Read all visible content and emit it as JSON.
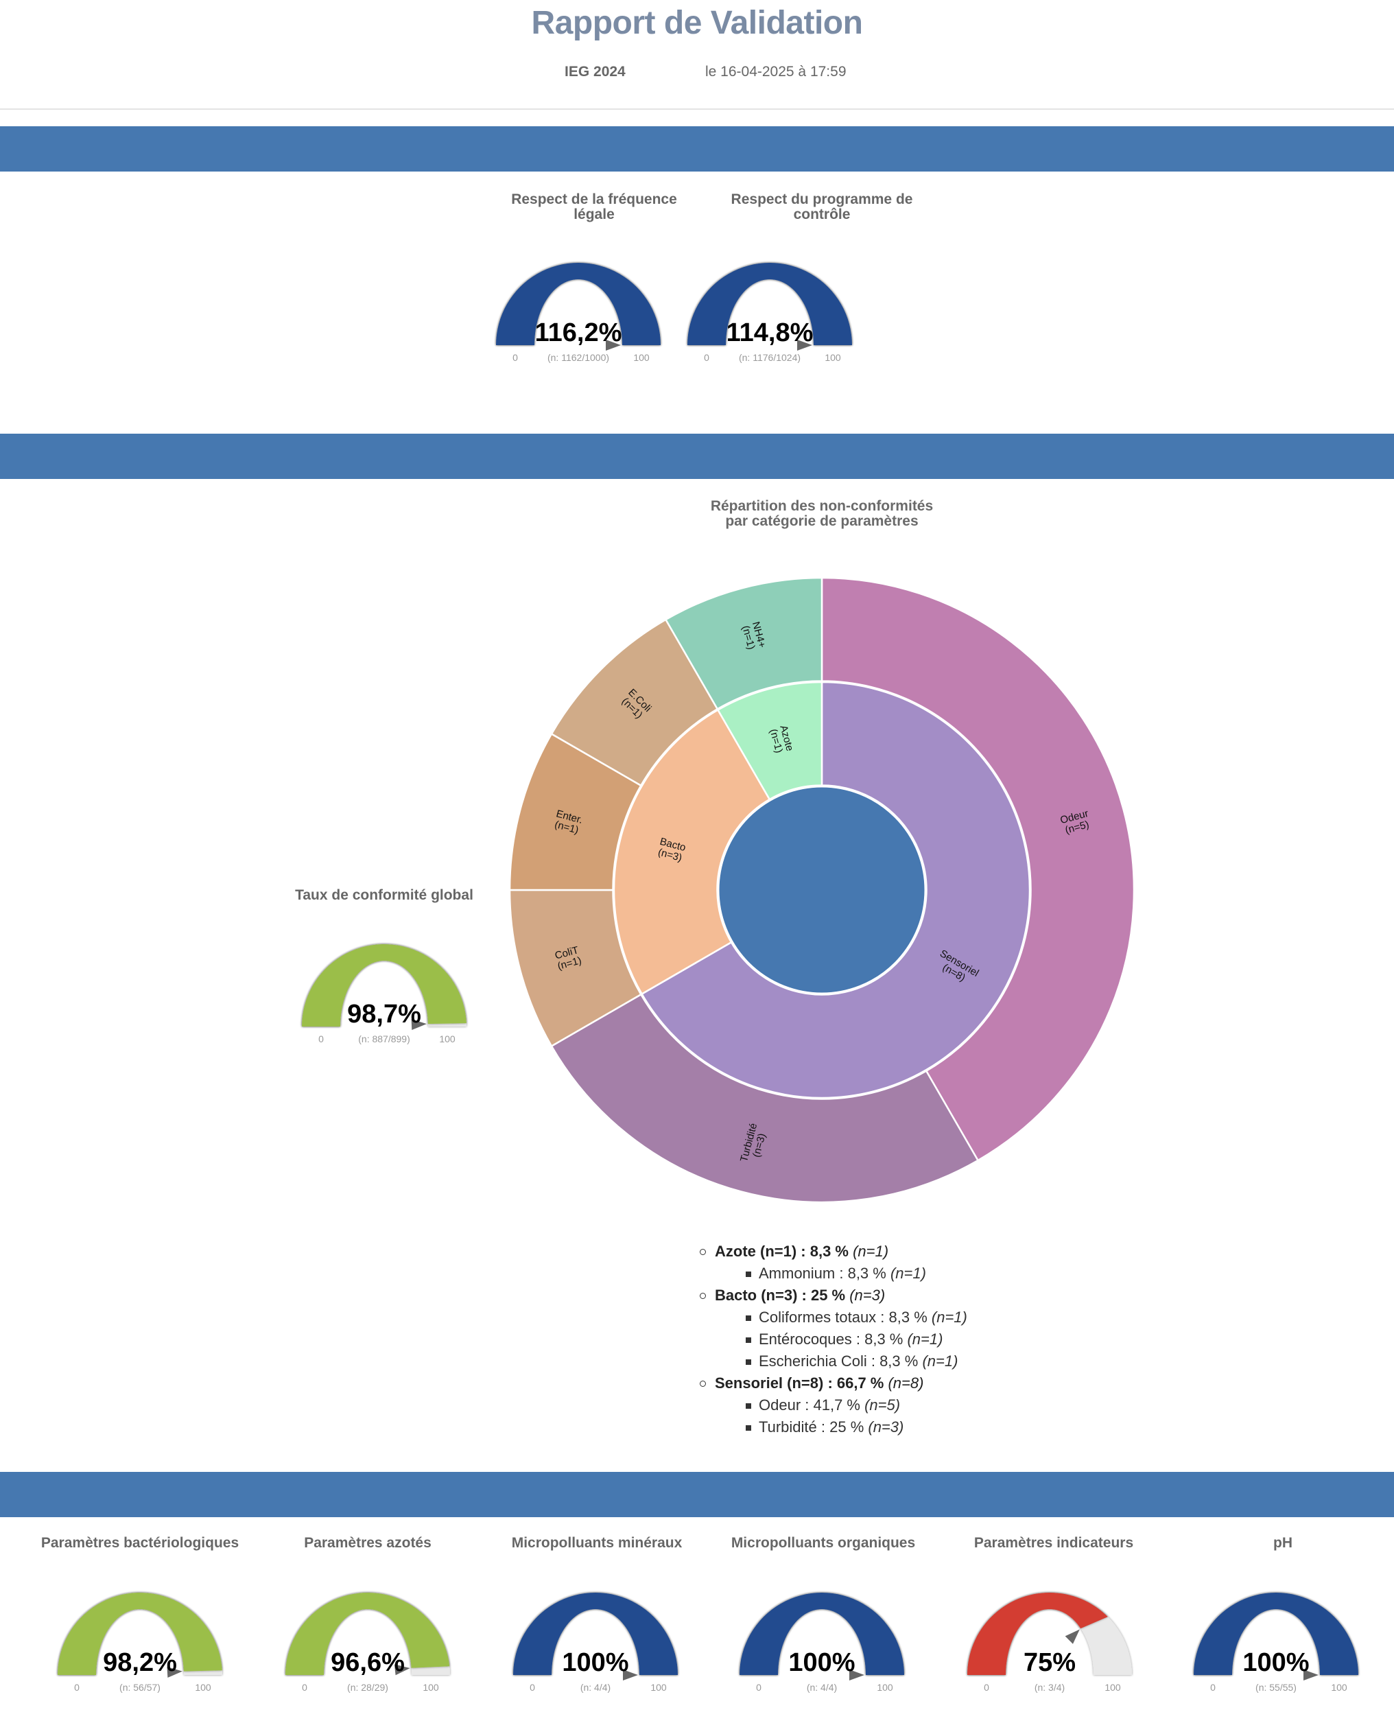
{
  "header": {
    "title": "Rapport de Validation",
    "entity": "IEG 2024",
    "date": "le 16-04-2025 à 17:59"
  },
  "colors": {
    "section_bar": "#4678b0",
    "gauge_blue": "#224b8f",
    "gauge_green": "#9bbe4a",
    "gauge_red": "#d33c32",
    "gauge_track": "#e9e9e9"
  },
  "sections": [
    {
      "name": "programme",
      "label": ""
    },
    {
      "name": "conformite",
      "label": ""
    },
    {
      "name": "categories",
      "label": ""
    }
  ],
  "chart_data": [
    {
      "type": "gauge",
      "id": "freq",
      "title": "Respect de la fréquence légale",
      "value": 116.2,
      "display": "116,2%",
      "detail": "(n: 1162/1000)",
      "min": 0,
      "max": 100,
      "min_label": "0",
      "max_label": "100",
      "color": "blue"
    },
    {
      "type": "gauge",
      "id": "prog",
      "title": "Respect du programme de contrôle",
      "value": 114.8,
      "display": "114,8%",
      "detail": "(n: 1176/1024)",
      "min": 0,
      "max": 100,
      "min_label": "0",
      "max_label": "100",
      "color": "blue"
    },
    {
      "type": "gauge",
      "id": "global",
      "title": "Taux de conformité global",
      "value": 98.7,
      "display": "98,7%",
      "detail": "(n: 887/899)",
      "min": 0,
      "max": 100,
      "min_label": "0",
      "max_label": "100",
      "color": "green"
    },
    {
      "type": "sunburst",
      "id": "nc",
      "title": "Répartition des non-conformités par catégorie de paramètres",
      "total": 12,
      "root_color": "#4678b0",
      "categories": [
        {
          "label": "Sensoriel",
          "value": 8,
          "color": "#a38dc6",
          "children": [
            {
              "label": "Odeur",
              "value": 5,
              "color": "#c07fb0"
            },
            {
              "label": "Turbidité",
              "value": 3,
              "color": "#a47fa8"
            }
          ]
        },
        {
          "label": "Bacto",
          "value": 3,
          "color": "#f4bc95",
          "children": [
            {
              "label": "ColiT",
              "value": 1,
              "color": "#d2a886"
            },
            {
              "label": "Enter.",
              "value": 1,
              "color": "#d2a075"
            },
            {
              "label": "E.Coli",
              "value": 1,
              "color": "#d0ab88"
            }
          ]
        },
        {
          "label": "Azote",
          "value": 1,
          "color": "#aaf0c4",
          "children": [
            {
              "label": "NH4+",
              "value": 1,
              "color": "#8ecfb8"
            }
          ]
        }
      ]
    },
    {
      "type": "gauge",
      "id": "bacterio",
      "title": "Paramètres bactériologiques",
      "value": 98.2,
      "display": "98,2%",
      "detail": "(n: 56/57)",
      "min": 0,
      "max": 100,
      "min_label": "0",
      "max_label": "100",
      "color": "green"
    },
    {
      "type": "gauge",
      "id": "azotes",
      "title": "Paramètres azotés",
      "value": 96.6,
      "display": "96,6%",
      "detail": "(n: 28/29)",
      "min": 0,
      "max": 100,
      "min_label": "0",
      "max_label": "100",
      "color": "green"
    },
    {
      "type": "gauge",
      "id": "mineraux",
      "title": "Micropolluants minéraux",
      "value": 100,
      "display": "100%",
      "detail": "(n: 4/4)",
      "min": 0,
      "max": 100,
      "min_label": "0",
      "max_label": "100",
      "color": "blue"
    },
    {
      "type": "gauge",
      "id": "organiques",
      "title": "Micropolluants organiques",
      "value": 100,
      "display": "100%",
      "detail": "(n: 4/4)",
      "min": 0,
      "max": 100,
      "min_label": "0",
      "max_label": "100",
      "color": "blue"
    },
    {
      "type": "gauge",
      "id": "indicateurs",
      "title": "Paramètres indicateurs",
      "value": 75,
      "display": "75%",
      "detail": "(n: 3/4)",
      "min": 0,
      "max": 100,
      "min_label": "0",
      "max_label": "100",
      "color": "red"
    },
    {
      "type": "gauge",
      "id": "ph",
      "title": "pH",
      "value": 100,
      "display": "100%",
      "detail": "(n: 55/55)",
      "min": 0,
      "max": 100,
      "min_label": "0",
      "max_label": "100",
      "color": "blue"
    }
  ],
  "legend": [
    {
      "label": "Azote (n=1) : 8,3 %",
      "n": "(n=1)",
      "children": [
        {
          "label": "Ammonium : 8,3 %",
          "n": "(n=1)"
        }
      ]
    },
    {
      "label": "Bacto (n=3) : 25 %",
      "n": "(n=3)",
      "children": [
        {
          "label": "Coliformes totaux : 8,3 %",
          "n": "(n=1)"
        },
        {
          "label": "Entérocoques : 8,3 %",
          "n": "(n=1)"
        },
        {
          "label": "Escherichia Coli : 8,3 %",
          "n": "(n=1)"
        }
      ]
    },
    {
      "label": "Sensoriel (n=8) : 66,7 %",
      "n": "(n=8)",
      "children": [
        {
          "label": "Odeur : 41,7 %",
          "n": "(n=5)"
        },
        {
          "label": "Turbidité : 25 %",
          "n": "(n=3)"
        }
      ]
    }
  ]
}
